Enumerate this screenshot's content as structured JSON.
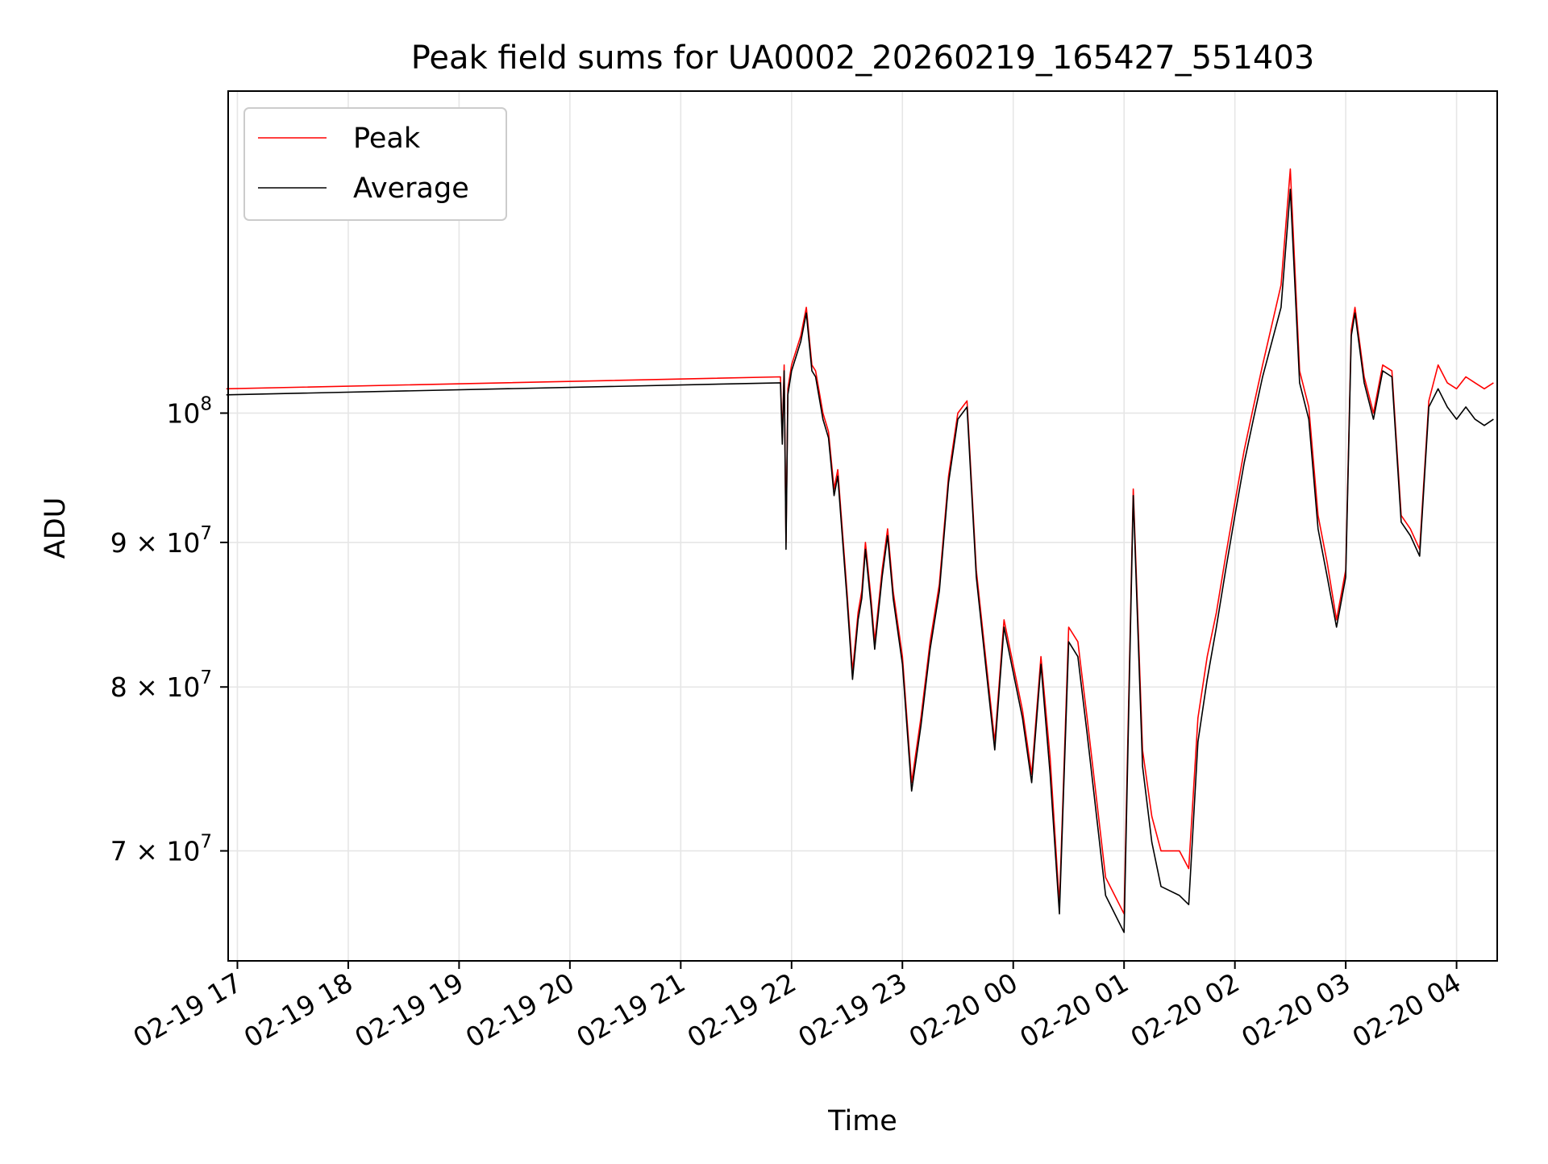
{
  "chart_data": {
    "type": "line",
    "title": "Peak field sums for UA0002_20260219_165427_551403",
    "xlabel": "Time",
    "ylabel": "ADU",
    "yscale": "log",
    "xlim": [
      "2026-02-19 16:55",
      "2026-02-20 04:22"
    ],
    "ylim": [
      64000000,
      130000000
    ],
    "x_ticks": [
      "2026-02-19 17:00",
      "2026-02-19 18:00",
      "2026-02-19 19:00",
      "2026-02-19 20:00",
      "2026-02-19 21:00",
      "2026-02-19 22:00",
      "2026-02-19 23:00",
      "2026-02-20 00:00",
      "2026-02-20 01:00",
      "2026-02-20 02:00",
      "2026-02-20 03:00",
      "2026-02-20 04:00"
    ],
    "x_tick_labels": [
      "02-19 17",
      "02-19 18",
      "02-19 19",
      "02-19 20",
      "02-19 21",
      "02-19 22",
      "02-19 23",
      "02-20 00",
      "02-20 01",
      "02-20 02",
      "02-20 03",
      "02-20 04"
    ],
    "y_ticks": [
      70000000,
      80000000,
      90000000,
      100000000
    ],
    "y_tick_labels": [
      {
        "base": "7 × 10",
        "exp": "7"
      },
      {
        "base": "8 × 10",
        "exp": "7"
      },
      {
        "base": "9 × 10",
        "exp": "7"
      },
      {
        "base": "10",
        "exp": "8"
      }
    ],
    "grid": true,
    "legend_position": "top-left",
    "series": [
      {
        "name": "Peak",
        "color": "#ff0000"
      },
      {
        "name": "Average",
        "color": "#000000"
      }
    ],
    "x": [
      "2026-02-19 16:54",
      "2026-02-19 21:54",
      "2026-02-19 21:55",
      "2026-02-19 21:56",
      "2026-02-19 21:57",
      "2026-02-19 21:58",
      "2026-02-19 22:00",
      "2026-02-19 22:05",
      "2026-02-19 22:08",
      "2026-02-19 22:11",
      "2026-02-19 22:13",
      "2026-02-19 22:17",
      "2026-02-19 22:20",
      "2026-02-19 22:23",
      "2026-02-19 22:25",
      "2026-02-19 22:30",
      "2026-02-19 22:33",
      "2026-02-19 22:36",
      "2026-02-19 22:38",
      "2026-02-19 22:40",
      "2026-02-19 22:43",
      "2026-02-19 22:45",
      "2026-02-19 22:49",
      "2026-02-19 22:52",
      "2026-02-19 22:55",
      "2026-02-19 23:00",
      "2026-02-19 23:05",
      "2026-02-19 23:10",
      "2026-02-19 23:15",
      "2026-02-19 23:20",
      "2026-02-19 23:25",
      "2026-02-19 23:30",
      "2026-02-19 23:35",
      "2026-02-19 23:40",
      "2026-02-19 23:45",
      "2026-02-19 23:50",
      "2026-02-19 23:55",
      "2026-02-20 00:05",
      "2026-02-20 00:10",
      "2026-02-20 00:15",
      "2026-02-20 00:20",
      "2026-02-20 00:25",
      "2026-02-20 00:30",
      "2026-02-20 00:35",
      "2026-02-20 00:40",
      "2026-02-20 00:50",
      "2026-02-20 01:00",
      "2026-02-20 01:05",
      "2026-02-20 01:10",
      "2026-02-20 01:15",
      "2026-02-20 01:20",
      "2026-02-20 01:30",
      "2026-02-20 01:35",
      "2026-02-20 01:40",
      "2026-02-20 01:45",
      "2026-02-20 01:50",
      "2026-02-20 01:55",
      "2026-02-20 02:00",
      "2026-02-20 02:05",
      "2026-02-20 02:10",
      "2026-02-20 02:15",
      "2026-02-20 02:25",
      "2026-02-20 02:30",
      "2026-02-20 02:35",
      "2026-02-20 02:40",
      "2026-02-20 02:45",
      "2026-02-20 02:50",
      "2026-02-20 02:55",
      "2026-02-20 03:00",
      "2026-02-20 03:03",
      "2026-02-20 03:05",
      "2026-02-20 03:10",
      "2026-02-20 03:15",
      "2026-02-20 03:20",
      "2026-02-20 03:25",
      "2026-02-20 03:30",
      "2026-02-20 03:35",
      "2026-02-20 03:40",
      "2026-02-20 03:45",
      "2026-02-20 03:50",
      "2026-02-20 03:55",
      "2026-02-20 04:00",
      "2026-02-20 04:05",
      "2026-02-20 04:10",
      "2026-02-20 04:15",
      "2026-02-20 04:20"
    ],
    "peak": [
      102000000,
      103000000,
      98000000,
      104000000,
      90000000,
      102000000,
      104000000,
      106500000,
      109000000,
      104000000,
      103500000,
      100000000,
      98500000,
      94000000,
      95500000,
      86500000,
      81000000,
      85000000,
      86500000,
      90000000,
      86000000,
      83000000,
      88000000,
      91000000,
      86500000,
      82000000,
      74000000,
      78000000,
      83000000,
      87000000,
      95000000,
      100000000,
      101000000,
      88000000,
      82000000,
      76500000,
      84500000,
      78500000,
      74500000,
      82000000,
      75500000,
      67000000,
      84000000,
      83000000,
      78000000,
      68500000,
      66500000,
      94000000,
      76000000,
      72000000,
      70000000,
      70000000,
      69000000,
      78000000,
      82000000,
      85000000,
      89000000,
      93000000,
      97000000,
      100500000,
      104000000,
      111000000,
      122000000,
      103500000,
      100500000,
      92000000,
      88500000,
      84500000,
      88000000,
      107000000,
      109000000,
      103000000,
      100000000,
      104000000,
      103500000,
      92000000,
      91000000,
      89500000,
      101000000,
      104000000,
      102500000,
      102000000,
      103000000,
      102500000,
      102000000,
      102500000
    ],
    "average": [
      101500000,
      102500000,
      97500000,
      103500000,
      89500000,
      101500000,
      103500000,
      106000000,
      108500000,
      103500000,
      103000000,
      99500000,
      98000000,
      93500000,
      95000000,
      86000000,
      80500000,
      84500000,
      86000000,
      89500000,
      85500000,
      82500000,
      87500000,
      90500000,
      86000000,
      81500000,
      73500000,
      77500000,
      82500000,
      86500000,
      94500000,
      99500000,
      100500000,
      87500000,
      81500000,
      76000000,
      84000000,
      78000000,
      74000000,
      81500000,
      74500000,
      66500000,
      83000000,
      82000000,
      77000000,
      67500000,
      65500000,
      93500000,
      75000000,
      70500000,
      68000000,
      67500000,
      67000000,
      76500000,
      80500000,
      84000000,
      88000000,
      92000000,
      96000000,
      99500000,
      103000000,
      109000000,
      120000000,
      102500000,
      99500000,
      91000000,
      87500000,
      84000000,
      87500000,
      106500000,
      108500000,
      102500000,
      99500000,
      103500000,
      103000000,
      91500000,
      90500000,
      89000000,
      100500000,
      102000000,
      100500000,
      99500000,
      100500000,
      99500000,
      99000000,
      99500000
    ]
  }
}
